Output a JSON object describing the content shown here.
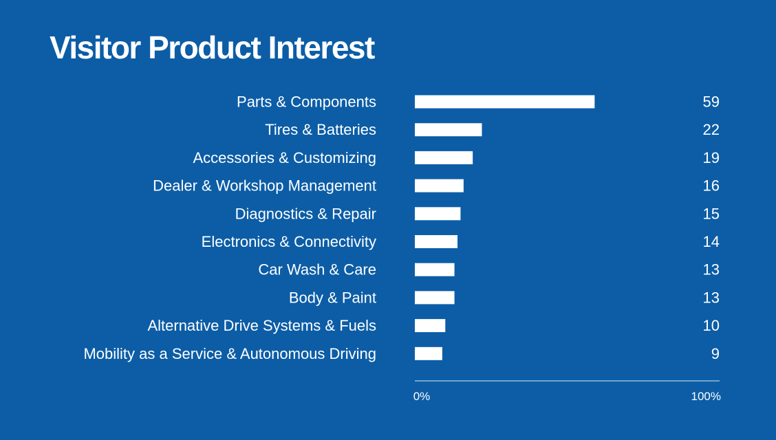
{
  "chart_data": {
    "type": "bar",
    "orientation": "horizontal",
    "title": "Visitor Product Interest",
    "categories": [
      "Parts & Components",
      "Tires & Batteries",
      "Accessories & Customizing",
      "Dealer & Workshop Management",
      "Diagnostics & Repair",
      "Electronics & Connectivity",
      "Car Wash & Care",
      "Body & Paint",
      "Alternative Drive Systems & Fuels",
      "Mobility as a Service & Autonomous Driving"
    ],
    "values": [
      59,
      22,
      19,
      16,
      15,
      14,
      13,
      13,
      10,
      9
    ],
    "value_labels": [
      "59",
      "22",
      "19",
      "16",
      "15",
      "14",
      "13",
      "13",
      "10",
      "9"
    ],
    "xlim": [
      0,
      100
    ],
    "x_tick_labels": [
      "0%",
      "100%"
    ],
    "xlabel": "",
    "ylabel": "",
    "grid": false,
    "colors": {
      "background": "#0c5da6",
      "bar": "#ffffff",
      "text": "#ffffff",
      "axis": "#ffffff"
    }
  }
}
